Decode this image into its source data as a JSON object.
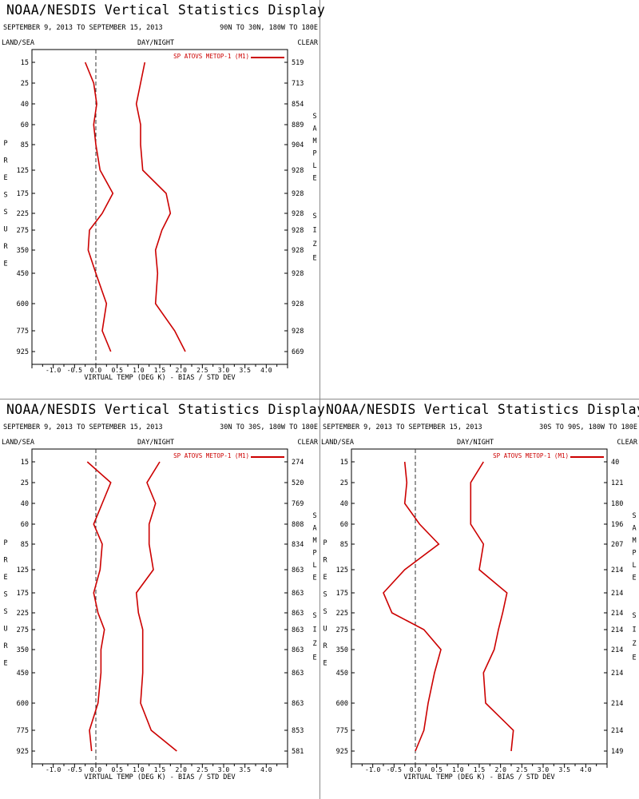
{
  "common": {
    "title": "NOAA/NESDIS Vertical Statistics Display",
    "date_range": "SEPTEMBER 9, 2013 TO SEPTEMBER 15, 2013",
    "header_left": "LAND/SEA",
    "header_center": "DAY/NIGHT",
    "header_right": "CLEAR",
    "y_side_label": "PRESSURE",
    "right_side_label_1": "SAMPLE",
    "right_side_label_2": "SIZE",
    "line_color": "#cc0000"
  },
  "chart_data": [
    {
      "type": "line",
      "panel": "top-left",
      "region": "90N TO 30N, 180W TO 180E",
      "xlabel": "VIRTUAL TEMP (DEG K) - BIAS / STD DEV",
      "ylabel": "PRESSURE",
      "x_ticks": [
        "-1.0",
        "-0.5",
        "0.0",
        "0.5",
        "1.0",
        "1.5",
        "2.0",
        "2.5",
        "3.0",
        "3.5",
        "4.0"
      ],
      "xlim": [
        -1.5,
        4.5
      ],
      "legend": "SP ATOVS METOP-1 (M1)",
      "legend_position": "top-right",
      "pressure_levels": [
        "15",
        "25",
        "40",
        "60",
        "85",
        "125",
        "175",
        "225",
        "275",
        "350",
        "450",
        "600",
        "775",
        "925"
      ],
      "sample_size": [
        "519",
        "713",
        "854",
        "889",
        "904",
        "928",
        "928",
        "928",
        "928",
        "928",
        "928",
        "928",
        "928",
        "669"
      ],
      "series": [
        {
          "name": "bias",
          "values": [
            -0.25,
            -0.05,
            0.02,
            -0.05,
            0.0,
            0.1,
            0.4,
            0.15,
            -0.15,
            -0.18,
            0.0,
            0.25,
            0.15,
            0.35
          ]
        },
        {
          "name": "std dev",
          "values": [
            1.15,
            1.05,
            0.95,
            1.05,
            1.05,
            1.1,
            1.65,
            1.75,
            1.55,
            1.4,
            1.45,
            1.4,
            1.85,
            2.1
          ]
        }
      ]
    },
    {
      "type": "line",
      "panel": "bottom-left",
      "region": "30N TO 30S, 180W TO 180E",
      "xlabel": "VIRTUAL TEMP (DEG K) - BIAS / STD DEV",
      "ylabel": "PRESSURE",
      "x_ticks": [
        "-1.0",
        "-0.5",
        "0.0",
        "0.5",
        "1.0",
        "1.5",
        "2.0",
        "2.5",
        "3.0",
        "3.5",
        "4.0"
      ],
      "xlim": [
        -1.5,
        4.5
      ],
      "legend": "SP ATOVS METOP-1 (M1)",
      "legend_position": "top-right",
      "pressure_levels": [
        "15",
        "25",
        "40",
        "60",
        "85",
        "125",
        "175",
        "225",
        "275",
        "350",
        "450",
        "600",
        "775",
        "925"
      ],
      "sample_size": [
        "274",
        "520",
        "769",
        "808",
        "834",
        "863",
        "863",
        "863",
        "863",
        "863",
        "863",
        "863",
        "853",
        "581"
      ],
      "series": [
        {
          "name": "bias",
          "values": [
            -0.2,
            0.35,
            0.15,
            -0.05,
            0.15,
            0.1,
            -0.05,
            0.05,
            0.2,
            0.12,
            0.12,
            0.05,
            -0.15,
            -0.1
          ]
        },
        {
          "name": "std dev",
          "values": [
            1.5,
            1.2,
            1.4,
            1.25,
            1.25,
            1.35,
            0.95,
            1.0,
            1.1,
            1.1,
            1.1,
            1.05,
            1.3,
            1.9
          ]
        }
      ]
    },
    {
      "type": "line",
      "panel": "bottom-right",
      "region": "30S TO 90S, 180W TO 180E",
      "xlabel": "VIRTUAL TEMP (DEG K) - BIAS / STD DEV",
      "ylabel": "PRESSURE",
      "x_ticks": [
        "-1.0",
        "-0.5",
        "0.0",
        "0.5",
        "1.0",
        "1.5",
        "2.0",
        "2.5",
        "3.0",
        "3.5",
        "4.0"
      ],
      "xlim": [
        -1.5,
        4.5
      ],
      "legend": "SP ATOVS METOP-1 (M1)",
      "legend_position": "top-right",
      "pressure_levels": [
        "15",
        "25",
        "40",
        "60",
        "85",
        "125",
        "175",
        "225",
        "275",
        "350",
        "450",
        "600",
        "775",
        "925"
      ],
      "sample_size": [
        "40",
        "121",
        "180",
        "196",
        "207",
        "214",
        "214",
        "214",
        "214",
        "214",
        "214",
        "214",
        "214",
        "149"
      ],
      "series": [
        {
          "name": "bias",
          "values": [
            -0.25,
            -0.2,
            -0.25,
            0.1,
            0.55,
            -0.25,
            -0.75,
            -0.55,
            0.2,
            0.6,
            0.45,
            0.3,
            0.2,
            0.0
          ],
          "x_range_note": ""
        },
        {
          "name": "std dev",
          "values": [
            1.6,
            1.3,
            1.3,
            1.3,
            1.6,
            1.5,
            2.15,
            2.05,
            1.95,
            1.85,
            1.6,
            1.65,
            2.3,
            2.25
          ]
        }
      ]
    }
  ]
}
